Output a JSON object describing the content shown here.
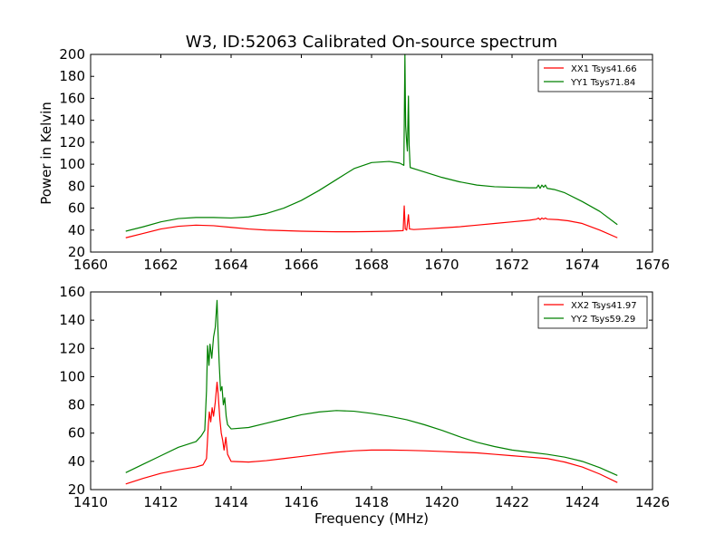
{
  "title": "W3, ID:52063 Calibrated On-source spectrum",
  "ylabel": "Power in Kelvin",
  "xlabel": "Frequency (MHz)",
  "colors": {
    "red": "#ff0000",
    "green": "#008000"
  },
  "chart_data": [
    {
      "type": "line",
      "title": "W3, ID:52063 Calibrated On-source spectrum",
      "ylabel": "Power in Kelvin",
      "xlabel": "",
      "xlim": [
        1660,
        1676
      ],
      "ylim": [
        20,
        200
      ],
      "xticks": [
        "1660",
        "1662",
        "1664",
        "1666",
        "1668",
        "1670",
        "1672",
        "1674",
        "1676"
      ],
      "yticks": [
        "20",
        "40",
        "60",
        "80",
        "100",
        "120",
        "140",
        "160",
        "180",
        "200"
      ],
      "legend": "top-right",
      "series": [
        {
          "name": "XX1 Tsys41.66",
          "color": "#ff0000",
          "points": [
            [
              1661.0,
              33
            ],
            [
              1661.5,
              37
            ],
            [
              1662.0,
              41
            ],
            [
              1662.5,
              43.5
            ],
            [
              1663.0,
              44.5
            ],
            [
              1663.5,
              44
            ],
            [
              1664.0,
              42.5
            ],
            [
              1664.5,
              41
            ],
            [
              1665.0,
              40
            ],
            [
              1665.5,
              39.5
            ],
            [
              1666.0,
              39
            ],
            [
              1666.5,
              38.7
            ],
            [
              1667.0,
              38.5
            ],
            [
              1667.5,
              38.5
            ],
            [
              1668.0,
              38.7
            ],
            [
              1668.5,
              39
            ],
            [
              1668.9,
              39.5
            ],
            [
              1668.93,
              62
            ],
            [
              1668.96,
              41
            ],
            [
              1669.0,
              40
            ],
            [
              1669.05,
              54
            ],
            [
              1669.08,
              41
            ],
            [
              1669.2,
              40.5
            ],
            [
              1669.5,
              41
            ],
            [
              1670.0,
              42
            ],
            [
              1670.5,
              43
            ],
            [
              1671.0,
              44.5
            ],
            [
              1671.5,
              46
            ],
            [
              1672.0,
              47.5
            ],
            [
              1672.5,
              49
            ],
            [
              1672.7,
              50
            ],
            [
              1672.75,
              51
            ],
            [
              1672.8,
              49.5
            ],
            [
              1672.85,
              51
            ],
            [
              1672.9,
              50
            ],
            [
              1672.95,
              51
            ],
            [
              1673.0,
              50
            ],
            [
              1673.3,
              49.5
            ],
            [
              1673.6,
              48.5
            ],
            [
              1674.0,
              46
            ],
            [
              1674.5,
              40
            ],
            [
              1675.0,
              33
            ]
          ]
        },
        {
          "name": "YY1 Tsys71.84",
          "color": "#008000",
          "points": [
            [
              1661.0,
              39
            ],
            [
              1661.5,
              43
            ],
            [
              1662.0,
              47.5
            ],
            [
              1662.5,
              50.5
            ],
            [
              1663.0,
              51.5
            ],
            [
              1663.5,
              51.5
            ],
            [
              1664.0,
              51
            ],
            [
              1664.5,
              52
            ],
            [
              1665.0,
              55
            ],
            [
              1665.5,
              60
            ],
            [
              1666.0,
              67
            ],
            [
              1666.5,
              76
            ],
            [
              1667.0,
              86
            ],
            [
              1667.5,
              96
            ],
            [
              1668.0,
              101.5
            ],
            [
              1668.5,
              102.5
            ],
            [
              1668.8,
              101
            ],
            [
              1668.92,
              99
            ],
            [
              1668.95,
              200
            ],
            [
              1668.97,
              135
            ],
            [
              1669.0,
              120
            ],
            [
              1669.02,
              112
            ],
            [
              1669.05,
              162
            ],
            [
              1669.07,
              118
            ],
            [
              1669.1,
              97
            ],
            [
              1669.3,
              95
            ],
            [
              1669.6,
              92
            ],
            [
              1670.0,
              88
            ],
            [
              1670.5,
              84
            ],
            [
              1671.0,
              81
            ],
            [
              1671.5,
              79.5
            ],
            [
              1672.0,
              79
            ],
            [
              1672.5,
              78.5
            ],
            [
              1672.7,
              78.5
            ],
            [
              1672.75,
              81
            ],
            [
              1672.8,
              78
            ],
            [
              1672.85,
              81
            ],
            [
              1672.9,
              79
            ],
            [
              1672.95,
              81
            ],
            [
              1673.0,
              78
            ],
            [
              1673.2,
              77
            ],
            [
              1673.5,
              74
            ],
            [
              1674.0,
              66
            ],
            [
              1674.5,
              57
            ],
            [
              1675.0,
              45
            ]
          ]
        }
      ]
    },
    {
      "type": "line",
      "title": "",
      "ylabel": "",
      "xlabel": "Frequency (MHz)",
      "xlim": [
        1410,
        1426
      ],
      "ylim": [
        20,
        160
      ],
      "xticks": [
        "1410",
        "1412",
        "1414",
        "1416",
        "1418",
        "1420",
        "1422",
        "1424",
        "1426"
      ],
      "yticks": [
        "20",
        "40",
        "60",
        "80",
        "100",
        "120",
        "140",
        "160"
      ],
      "legend": "top-right",
      "series": [
        {
          "name": "XX2 Tsys41.97",
          "color": "#ff0000",
          "points": [
            [
              1411.0,
              24
            ],
            [
              1411.5,
              28
            ],
            [
              1412.0,
              31.5
            ],
            [
              1412.5,
              34
            ],
            [
              1413.0,
              36
            ],
            [
              1413.2,
              37.5
            ],
            [
              1413.3,
              42
            ],
            [
              1413.35,
              65
            ],
            [
              1413.38,
              75
            ],
            [
              1413.42,
              68
            ],
            [
              1413.46,
              78
            ],
            [
              1413.5,
              72
            ],
            [
              1413.55,
              82
            ],
            [
              1413.6,
              96
            ],
            [
              1413.63,
              88
            ],
            [
              1413.68,
              70
            ],
            [
              1413.72,
              60
            ],
            [
              1413.76,
              55
            ],
            [
              1413.8,
              48
            ],
            [
              1413.85,
              57
            ],
            [
              1413.9,
              45
            ],
            [
              1414.0,
              40
            ],
            [
              1414.5,
              39.5
            ],
            [
              1415.0,
              40.5
            ],
            [
              1415.5,
              42
            ],
            [
              1416.0,
              43.5
            ],
            [
              1416.5,
              45
            ],
            [
              1417.0,
              46.5
            ],
            [
              1417.5,
              47.5
            ],
            [
              1418.0,
              48
            ],
            [
              1418.5,
              48
            ],
            [
              1419.0,
              47.8
            ],
            [
              1419.5,
              47.5
            ],
            [
              1420.0,
              47
            ],
            [
              1420.5,
              46.5
            ],
            [
              1421.0,
              46
            ],
            [
              1421.5,
              45
            ],
            [
              1422.0,
              44
            ],
            [
              1422.5,
              43
            ],
            [
              1423.0,
              42
            ],
            [
              1423.5,
              39.5
            ],
            [
              1424.0,
              36
            ],
            [
              1424.5,
              31
            ],
            [
              1425.0,
              25
            ]
          ]
        },
        {
          "name": "YY2 Tsys59.29",
          "color": "#008000",
          "points": [
            [
              1411.0,
              32
            ],
            [
              1411.5,
              38
            ],
            [
              1412.0,
              44
            ],
            [
              1412.5,
              50
            ],
            [
              1413.0,
              54
            ],
            [
              1413.15,
              58
            ],
            [
              1413.25,
              62
            ],
            [
              1413.3,
              90
            ],
            [
              1413.33,
              122
            ],
            [
              1413.37,
              108
            ],
            [
              1413.4,
              123
            ],
            [
              1413.45,
              113
            ],
            [
              1413.5,
              128
            ],
            [
              1413.55,
              135
            ],
            [
              1413.6,
              154
            ],
            [
              1413.63,
              130
            ],
            [
              1413.66,
              110
            ],
            [
              1413.7,
              90
            ],
            [
              1413.74,
              93
            ],
            [
              1413.78,
              80
            ],
            [
              1413.82,
              85
            ],
            [
              1413.86,
              72
            ],
            [
              1413.9,
              66
            ],
            [
              1414.0,
              63
            ],
            [
              1414.5,
              64
            ],
            [
              1415.0,
              67
            ],
            [
              1415.5,
              70
            ],
            [
              1416.0,
              73
            ],
            [
              1416.5,
              75
            ],
            [
              1417.0,
              76
            ],
            [
              1417.5,
              75.5
            ],
            [
              1418.0,
              74
            ],
            [
              1418.5,
              72
            ],
            [
              1419.0,
              69.5
            ],
            [
              1419.5,
              66
            ],
            [
              1420.0,
              62
            ],
            [
              1420.5,
              57.5
            ],
            [
              1421.0,
              53.5
            ],
            [
              1421.5,
              50.5
            ],
            [
              1422.0,
              48
            ],
            [
              1422.5,
              46.5
            ],
            [
              1423.0,
              45
            ],
            [
              1423.5,
              43
            ],
            [
              1424.0,
              40
            ],
            [
              1424.5,
              35.5
            ],
            [
              1425.0,
              30
            ]
          ]
        }
      ]
    }
  ]
}
